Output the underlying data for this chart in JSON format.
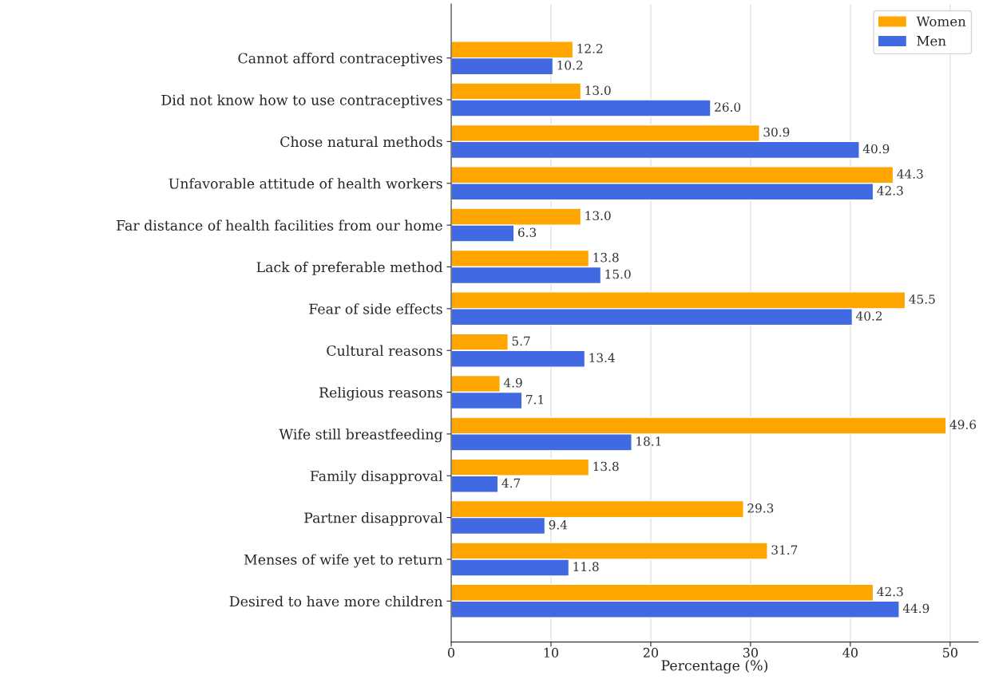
{
  "chart_data": {
    "type": "bar",
    "orientation": "horizontal",
    "xlabel": "Percentage (%)",
    "categories": [
      "Cannot afford contraceptives",
      "Did not know how to use contraceptives",
      "Chose natural methods",
      "Unfavorable attitude of health workers",
      "Far distance of health facilities from our home",
      "Lack of preferable method",
      "Fear of side effects",
      "Cultural reasons",
      "Religious reasons",
      "Wife still breastfeeding",
      "Family disapproval",
      "Partner disapproval",
      "Menses of wife yet to return",
      "Desired to have more children"
    ],
    "series": [
      {
        "name": "Women",
        "color": "#ffa500",
        "values": [
          12.2,
          13.0,
          30.9,
          44.3,
          13.0,
          13.8,
          45.5,
          5.7,
          4.9,
          49.6,
          13.8,
          29.3,
          31.7,
          42.3
        ],
        "value_labels": [
          "12.2",
          "13.0",
          "30.9",
          "44.3",
          "13.0",
          "13.8",
          "45.5",
          "5.7",
          "4.9",
          "49.6",
          "13.8",
          "29.3",
          "31.7",
          "42.3"
        ]
      },
      {
        "name": "Men",
        "color": "#4169e1",
        "values": [
          10.2,
          26.0,
          40.9,
          42.3,
          6.3,
          15.0,
          40.2,
          13.4,
          7.1,
          18.1,
          4.7,
          9.4,
          11.8,
          44.9
        ],
        "value_labels": [
          "10.2",
          "26.0",
          "40.9",
          "42.3",
          "6.3",
          "15.0",
          "40.2",
          "13.4",
          "7.1",
          "18.1",
          "4.7",
          "9.4",
          "11.8",
          "44.9"
        ]
      }
    ],
    "xlim": [
      0,
      52.8
    ],
    "xticks": [
      0,
      10,
      20,
      30,
      40,
      50
    ],
    "grid": "x",
    "legend": "top right"
  }
}
